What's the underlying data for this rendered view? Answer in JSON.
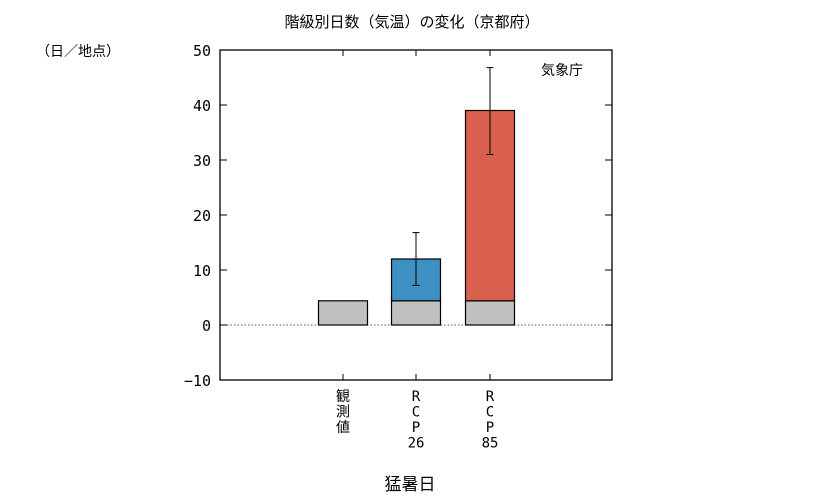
{
  "chart_data": {
    "type": "bar",
    "title": "階級別日数（気温）の変化（京都府）",
    "unit_label": "（日／地点）",
    "source_label": "気象庁",
    "xlabel": "猛暑日",
    "ylim": [
      -10,
      50
    ],
    "yticks": [
      -10,
      0,
      10,
      20,
      30,
      40,
      50
    ],
    "grid": false,
    "zero_line": "dotted",
    "categories": [
      {
        "key": "obs",
        "lines": [
          "観",
          "測",
          "値"
        ]
      },
      {
        "key": "rcp26",
        "lines": [
          "R",
          "C",
          "P",
          "26"
        ]
      },
      {
        "key": "rcp85",
        "lines": [
          "R",
          "C",
          "P",
          "85"
        ]
      }
    ],
    "series": [
      {
        "role": "observed_baseline",
        "color": "#c0c0c0",
        "values": [
          4.4,
          4.4,
          4.4
        ]
      },
      {
        "role": "projected_increase",
        "colors": [
          "",
          "#3d8fc4",
          "#d9604c"
        ],
        "values": [
          0,
          7.6,
          34.6
        ]
      }
    ],
    "error_bars": [
      null,
      {
        "low": 7.2,
        "high": 16.8
      },
      {
        "low": 31.0,
        "high": 46.8
      }
    ]
  }
}
